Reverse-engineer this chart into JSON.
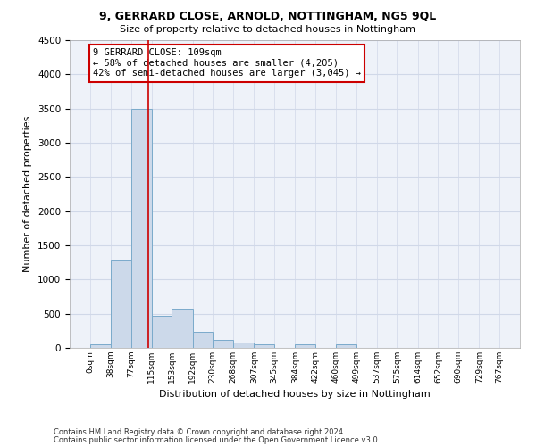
{
  "title1": "9, GERRARD CLOSE, ARNOLD, NOTTINGHAM, NG5 9QL",
  "title2": "Size of property relative to detached houses in Nottingham",
  "xlabel": "Distribution of detached houses by size in Nottingham",
  "ylabel": "Number of detached properties",
  "footer1": "Contains HM Land Registry data © Crown copyright and database right 2024.",
  "footer2": "Contains public sector information licensed under the Open Government Licence v3.0.",
  "property_label": "9 GERRARD CLOSE: 109sqm",
  "annotation_line1": "← 58% of detached houses are smaller (4,205)",
  "annotation_line2": "42% of semi-detached houses are larger (3,045) →",
  "property_size": 109,
  "bar_color": "#ccd9ea",
  "bar_edge_color": "#7aaacb",
  "vline_color": "#cc0000",
  "annotation_box_color": "#cc0000",
  "grid_color": "#d0d8e8",
  "background_color": "#eef2f9",
  "bin_edges": [
    0,
    38,
    77,
    115,
    153,
    192,
    230,
    268,
    307,
    345,
    384,
    422,
    460,
    499,
    537,
    575,
    614,
    652,
    690,
    729,
    767
  ],
  "bar_heights": [
    50,
    1280,
    3500,
    470,
    570,
    240,
    115,
    75,
    50,
    0,
    50,
    0,
    50,
    0,
    0,
    0,
    0,
    0,
    0,
    0
  ],
  "ylim": [
    0,
    4500
  ],
  "yticks": [
    0,
    500,
    1000,
    1500,
    2000,
    2500,
    3000,
    3500,
    4000,
    4500
  ]
}
